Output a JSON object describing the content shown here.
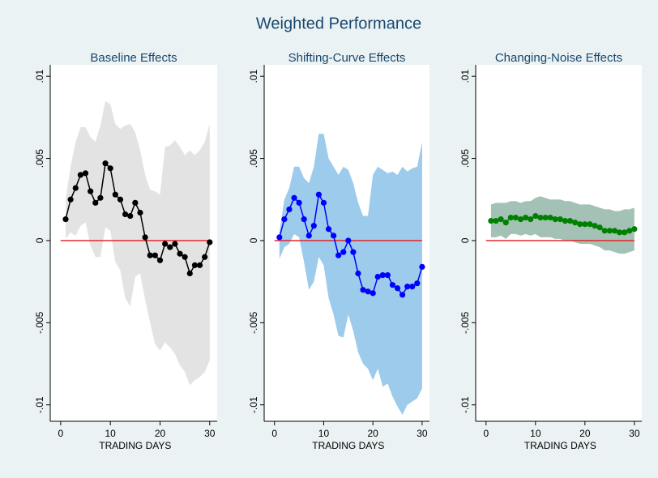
{
  "title": "Weighted Performance",
  "chart_data": [
    {
      "type": "line",
      "title": "Baseline Effects",
      "xlabel": "TRADING DAYS",
      "x": [
        1,
        2,
        3,
        4,
        5,
        6,
        7,
        8,
        9,
        10,
        11,
        12,
        13,
        14,
        15,
        16,
        17,
        18,
        19,
        20,
        21,
        22,
        23,
        24,
        25,
        26,
        27,
        28,
        29,
        30
      ],
      "values": [
        0.0013,
        0.0025,
        0.0032,
        0.004,
        0.0041,
        0.003,
        0.0023,
        0.0026,
        0.0047,
        0.0044,
        0.0028,
        0.0025,
        0.0016,
        0.0015,
        0.0023,
        0.0017,
        0.0002,
        -0.0009,
        -0.0009,
        -0.0012,
        -0.0002,
        -0.0004,
        -0.0002,
        -0.0008,
        -0.001,
        -0.002,
        -0.0015,
        -0.0015,
        -0.001,
        -0.0001
      ],
      "upper": [
        0.0025,
        0.0045,
        0.006,
        0.0069,
        0.0069,
        0.0063,
        0.006,
        0.007,
        0.0085,
        0.0083,
        0.0071,
        0.0068,
        0.007,
        0.0071,
        0.0066,
        0.0055,
        0.004,
        0.0031,
        0.003,
        0.0028,
        0.0057,
        0.0058,
        0.0061,
        0.0057,
        0.0052,
        0.0055,
        0.0052,
        0.0055,
        0.006,
        0.0071
      ],
      "lower": [
        0.0001,
        0.0005,
        0.0003,
        0.0009,
        0.0011,
        -0.0003,
        -0.001,
        -0.001,
        0.0008,
        0.0006,
        -0.0013,
        -0.0018,
        -0.0035,
        -0.004,
        -0.0022,
        -0.002,
        -0.0036,
        -0.005,
        -0.0063,
        -0.0067,
        -0.0062,
        -0.0065,
        -0.0069,
        -0.0076,
        -0.008,
        -0.0088,
        -0.0085,
        -0.0083,
        -0.008,
        -0.0073
      ],
      "color": "#000000",
      "band_color": "#e3e3e3",
      "refline": 0,
      "refline_color": "#e8191a",
      "xlim": [
        -2.1,
        31.5
      ],
      "xticks": [
        0,
        10,
        20,
        30
      ],
      "ylim": [
        -0.011,
        0.0107
      ],
      "yticks": [
        {
          "value": -0.01,
          "label": "-.01"
        },
        {
          "value": -0.005,
          "label": "-.005"
        },
        0,
        {
          "value": 0.005,
          "label": ".005"
        },
        {
          "value": 0.01,
          "label": ".01"
        }
      ]
    },
    {
      "type": "line",
      "title": "Shifting-Curve Effects",
      "xlabel": "TRADING DAYS",
      "x": [
        1,
        2,
        3,
        4,
        5,
        6,
        7,
        8,
        9,
        10,
        11,
        12,
        13,
        14,
        15,
        16,
        17,
        18,
        19,
        20,
        21,
        22,
        23,
        24,
        25,
        26,
        27,
        28,
        29,
        30
      ],
      "values": [
        0.0002,
        0.0013,
        0.0019,
        0.0026,
        0.0023,
        0.0013,
        0.0003,
        0.0009,
        0.0028,
        0.0023,
        0.0007,
        0.0003,
        -0.0009,
        -0.0007,
        0,
        -0.0007,
        -0.002,
        -0.003,
        -0.0031,
        -0.0032,
        -0.0022,
        -0.0021,
        -0.0021,
        -0.0027,
        -0.0029,
        -0.0033,
        -0.0028,
        -0.0028,
        -0.0026,
        -0.0016
      ],
      "upper": [
        0.0005,
        0.0025,
        0.0032,
        0.0045,
        0.0045,
        0.0038,
        0.0035,
        0.0045,
        0.0065,
        0.0065,
        0.005,
        0.0045,
        0.004,
        0.0045,
        0.0043,
        0.0035,
        0.0023,
        0.0015,
        0.0015,
        0.004,
        0.0045,
        0.0043,
        0.0041,
        0.0042,
        0.004,
        0.0045,
        0.0042,
        0.0044,
        0.0045,
        0.006
      ],
      "lower": [
        -0.0011,
        -0.0004,
        -0.0002,
        0.0004,
        0.0002,
        -0.0013,
        -0.003,
        -0.0025,
        -0.001,
        -0.0015,
        -0.0035,
        -0.0045,
        -0.0058,
        -0.0059,
        -0.0045,
        -0.0055,
        -0.0068,
        -0.0075,
        -0.0078,
        -0.0085,
        -0.0078,
        -0.0089,
        -0.0087,
        -0.0095,
        -0.0101,
        -0.0106,
        -0.01,
        -0.0098,
        -0.0096,
        -0.009
      ],
      "color": "#0000ff",
      "band_color": "#9ccbeb",
      "refline": 0,
      "refline_color": "#e8191a",
      "xlim": [
        -2.1,
        31.5
      ],
      "xticks": [
        0,
        10,
        20,
        30
      ],
      "ylim": [
        -0.011,
        0.0107
      ],
      "yticks": [
        {
          "value": -0.01,
          "label": "-.01"
        },
        {
          "value": -0.005,
          "label": "-.005"
        },
        0,
        {
          "value": 0.005,
          "label": ".005"
        },
        {
          "value": 0.01,
          "label": ".01"
        }
      ]
    },
    {
      "type": "line",
      "title": "Changing-Noise Effects",
      "xlabel": "TRADING DAYS",
      "x": [
        1,
        2,
        3,
        4,
        5,
        6,
        7,
        8,
        9,
        10,
        11,
        12,
        13,
        14,
        15,
        16,
        17,
        18,
        19,
        20,
        21,
        22,
        23,
        24,
        25,
        26,
        27,
        28,
        29,
        30
      ],
      "values": [
        0.0012,
        0.0012,
        0.0013,
        0.0011,
        0.0014,
        0.0014,
        0.0013,
        0.0014,
        0.0013,
        0.0015,
        0.0014,
        0.0014,
        0.0014,
        0.0013,
        0.0013,
        0.0012,
        0.0012,
        0.0011,
        0.001,
        0.001,
        0.001,
        0.0009,
        0.0008,
        0.0006,
        0.0006,
        0.0006,
        0.0005,
        0.0005,
        0.0006,
        0.0007
      ],
      "upper": [
        0.0022,
        0.0023,
        0.0023,
        0.0023,
        0.0024,
        0.0024,
        0.0023,
        0.0024,
        0.0024,
        0.0026,
        0.0027,
        0.0026,
        0.0025,
        0.0025,
        0.0025,
        0.0024,
        0.0024,
        0.0023,
        0.0022,
        0.0022,
        0.0022,
        0.0021,
        0.002,
        0.0019,
        0.0019,
        0.0018,
        0.0018,
        0.0019,
        0.0019,
        0.002
      ],
      "lower": [
        0.0002,
        0.0002,
        0.0003,
        0.0001,
        0.0004,
        0.0004,
        0.0003,
        0.0004,
        0.0003,
        0.0004,
        0.0002,
        0.0002,
        0.0002,
        0.0001,
        0.0001,
        0,
        0,
        -0.0001,
        -0.0002,
        -0.0002,
        -0.0002,
        -0.0003,
        -0.0004,
        -0.0006,
        -0.0006,
        -0.0007,
        -0.0008,
        -0.0008,
        -0.0007,
        -0.0006
      ],
      "color": "#008000",
      "band_color": "#a3c2b5",
      "refline": 0,
      "refline_color": "#e8191a",
      "xlim": [
        -2.1,
        31.5
      ],
      "xticks": [
        0,
        10,
        20,
        30
      ],
      "ylim": [
        -0.011,
        0.0107
      ],
      "yticks": [
        {
          "value": -0.01,
          "label": "-.01"
        },
        {
          "value": -0.005,
          "label": "-.005"
        },
        0,
        {
          "value": 0.005,
          "label": ".005"
        },
        {
          "value": 0.01,
          "label": ".01"
        }
      ]
    }
  ]
}
